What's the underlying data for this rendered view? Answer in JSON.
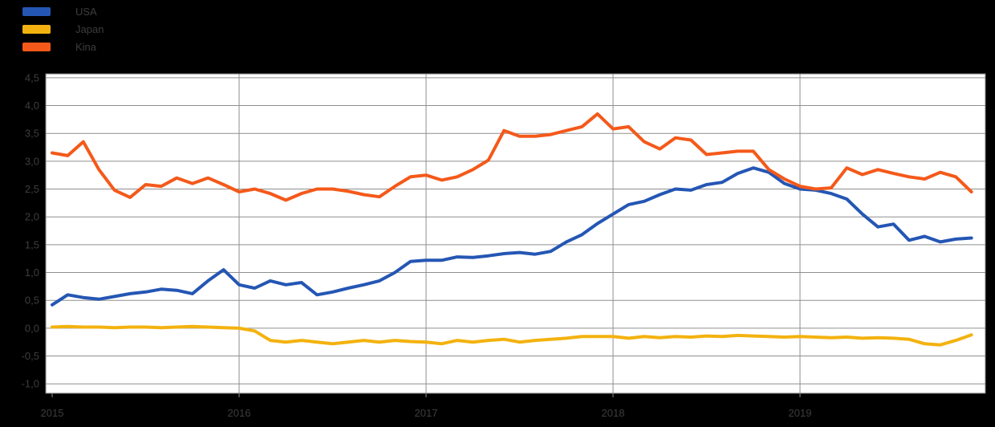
{
  "figure": {
    "background": "#000000",
    "plot_background": "#ffffff",
    "grid_color": "#8f8f8f",
    "border_color": "#7a7a7a",
    "text_color": "#3d3d3d"
  },
  "legend": {
    "items": [
      {
        "label": "USA",
        "color": "#2456b4"
      },
      {
        "label": "Japan",
        "color": "#f3b20f"
      },
      {
        "label": "Kina",
        "color": "#f4591a"
      }
    ]
  },
  "chart_data": {
    "type": "line",
    "title": "",
    "xlabel": "",
    "ylabel": "",
    "x_start_year": 2015,
    "points_per_year": 12,
    "x_tick_labels": [
      "2015",
      "2016",
      "2017",
      "2018",
      "2019"
    ],
    "y_ticks": [
      4.5,
      4.0,
      3.5,
      3.0,
      2.5,
      2.0,
      1.5,
      1.0,
      0.5,
      0.0,
      -0.5,
      -1.0
    ],
    "y_tick_labels": [
      "4,5",
      "4,0",
      "3,5",
      "3,0",
      "2,5",
      "2,0",
      "1,5",
      "1,0",
      "0,5",
      "0,0",
      "-0,5",
      "-1,0"
    ],
    "ylim": [
      -1.17,
      4.57
    ],
    "grid": true,
    "legend_position": "top-left",
    "series": [
      {
        "name": "USA",
        "color": "#2456b4",
        "values": [
          0.42,
          0.6,
          0.55,
          0.52,
          0.57,
          0.62,
          0.65,
          0.7,
          0.68,
          0.62,
          0.85,
          1.05,
          0.78,
          0.72,
          0.85,
          0.78,
          0.82,
          0.6,
          0.65,
          0.72,
          0.78,
          0.85,
          1.0,
          1.2,
          1.22,
          1.22,
          1.28,
          1.27,
          1.3,
          1.34,
          1.36,
          1.33,
          1.38,
          1.55,
          1.68,
          1.88,
          2.05,
          2.22,
          2.28,
          2.4,
          2.5,
          2.48,
          2.58,
          2.62,
          2.78,
          2.88,
          2.8,
          2.6,
          2.5,
          2.48,
          2.42,
          2.32,
          2.05,
          1.82,
          1.87,
          1.58,
          1.65,
          1.55,
          1.6,
          1.62
        ]
      },
      {
        "name": "Japan",
        "color": "#f3b20f",
        "values": [
          0.02,
          0.03,
          0.02,
          0.02,
          0.01,
          0.02,
          0.02,
          0.01,
          0.02,
          0.03,
          0.02,
          0.01,
          0.0,
          -0.05,
          -0.22,
          -0.25,
          -0.22,
          -0.25,
          -0.28,
          -0.25,
          -0.22,
          -0.25,
          -0.22,
          -0.24,
          -0.25,
          -0.28,
          -0.22,
          -0.25,
          -0.22,
          -0.2,
          -0.25,
          -0.22,
          -0.2,
          -0.18,
          -0.15,
          -0.15,
          -0.15,
          -0.18,
          -0.15,
          -0.17,
          -0.15,
          -0.16,
          -0.14,
          -0.15,
          -0.13,
          -0.14,
          -0.15,
          -0.16,
          -0.15,
          -0.16,
          -0.17,
          -0.16,
          -0.18,
          -0.17,
          -0.18,
          -0.2,
          -0.28,
          -0.3,
          -0.22,
          -0.12
        ]
      },
      {
        "name": "Kina",
        "color": "#f4591a",
        "values": [
          3.15,
          3.1,
          3.35,
          2.85,
          2.48,
          2.35,
          2.58,
          2.55,
          2.7,
          2.6,
          2.7,
          2.58,
          2.45,
          2.5,
          2.42,
          2.3,
          2.42,
          2.5,
          2.5,
          2.46,
          2.4,
          2.36,
          2.55,
          2.72,
          2.75,
          2.66,
          2.72,
          2.85,
          3.02,
          3.55,
          3.45,
          3.45,
          3.48,
          3.55,
          3.62,
          3.85,
          3.58,
          3.62,
          3.35,
          3.22,
          3.42,
          3.38,
          3.12,
          3.15,
          3.18,
          3.18,
          2.85,
          2.68,
          2.55,
          2.5,
          2.52,
          2.88,
          2.76,
          2.85,
          2.78,
          2.72,
          2.68,
          2.8,
          2.72,
          2.45
        ]
      }
    ]
  }
}
